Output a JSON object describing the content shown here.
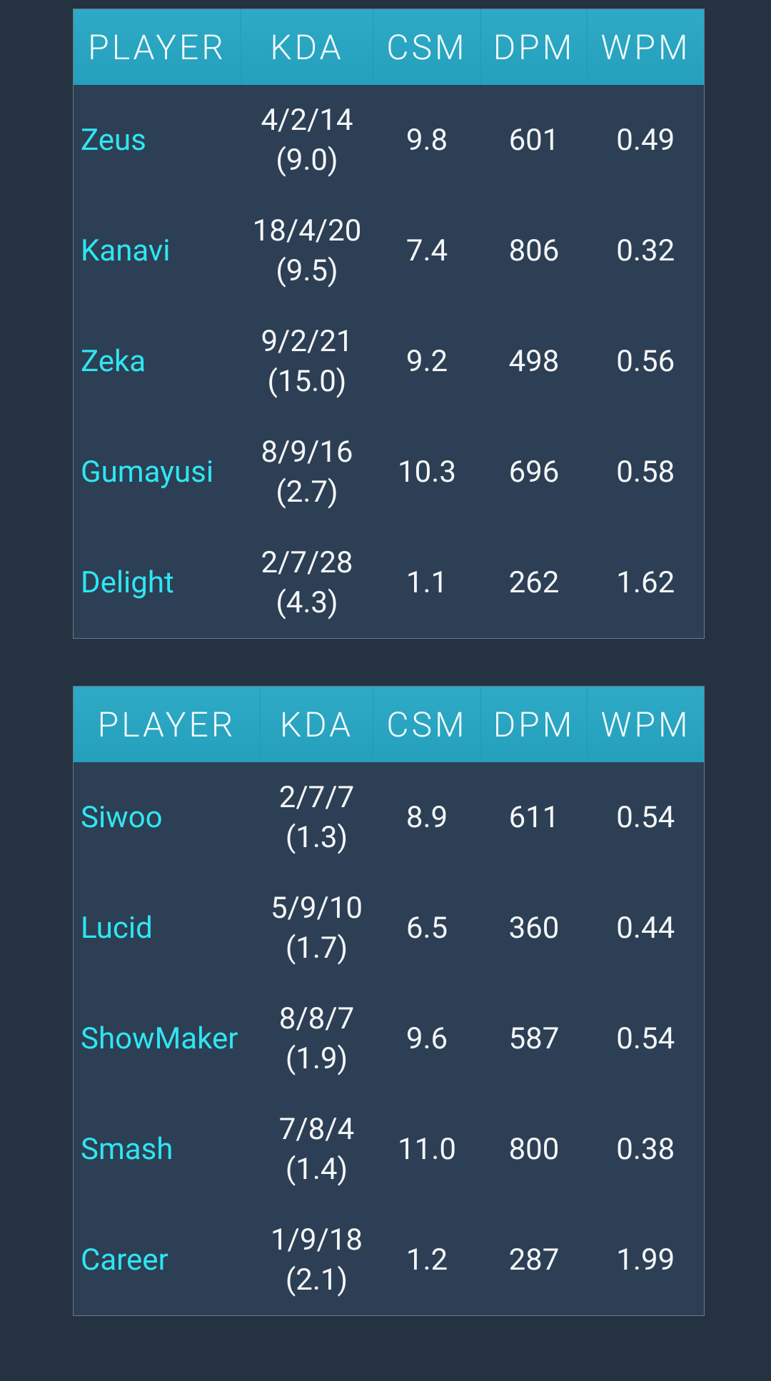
{
  "tables": [
    {
      "header": [
        "PLAYER",
        "KDA",
        "CSM",
        "DPM",
        "WPM"
      ],
      "rows": [
        [
          "Zeus",
          "4/2/14",
          "(9.0)",
          "9.8",
          "601",
          "0.49"
        ],
        [
          "Kanavi",
          "18/4/20",
          "(9.5)",
          "7.4",
          "806",
          "0.32"
        ],
        [
          "Zeka",
          "9/2/21",
          "(15.0)",
          "9.2",
          "498",
          "0.56"
        ],
        [
          "Gumayusi",
          "8/9/16",
          "(2.7)",
          "10.3",
          "696",
          "0.58"
        ],
        [
          "Delight",
          "2/7/28",
          "(4.3)",
          "1.1",
          "262",
          "1.62"
        ]
      ]
    },
    {
      "header": [
        "PLAYER",
        "KDA",
        "CSM",
        "DPM",
        "WPM"
      ],
      "rows": [
        [
          "Siwoo",
          "2/7/7",
          "(1.3)",
          "8.9",
          "611",
          "0.54"
        ],
        [
          "Lucid",
          "5/9/10",
          "(1.7)",
          "6.5",
          "360",
          "0.44"
        ],
        [
          "ShowMaker",
          "8/8/7",
          "(1.9)",
          "9.6",
          "587",
          "0.54"
        ],
        [
          "Smash",
          "7/8/4",
          "(1.4)",
          "11.0",
          "800",
          "0.38"
        ],
        [
          "Career",
          "1/9/18",
          "(2.1)",
          "1.2",
          "287",
          "1.99"
        ]
      ]
    }
  ]
}
